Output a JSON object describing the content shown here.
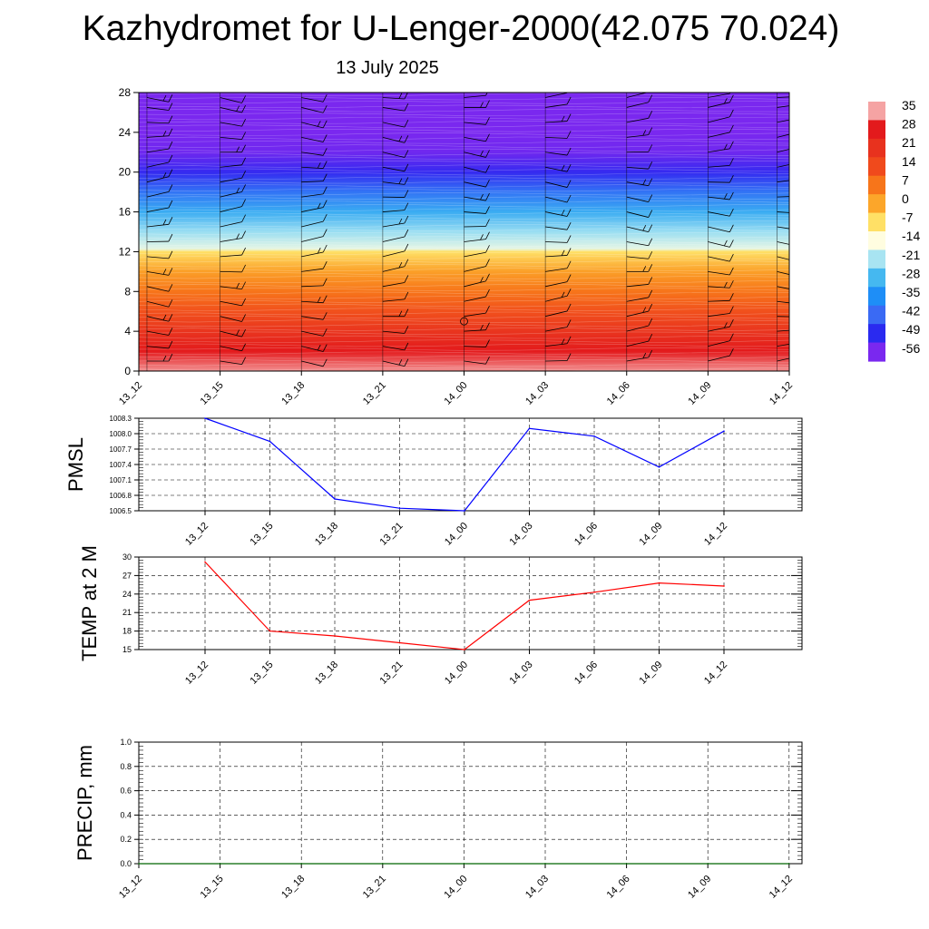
{
  "title": "Kazhydromet for U-Lenger-2000(42.075 70.024)",
  "subtitle": "13 July 2025",
  "chart_data": [
    {
      "type": "heatmap",
      "x_ticks": [
        "13_12",
        "13_15",
        "13_18",
        "13_21",
        "14_00",
        "14_03",
        "14_06",
        "14_09",
        "14_12"
      ],
      "y_ticks": [
        0,
        4,
        8,
        12,
        16,
        20,
        24,
        28
      ],
      "ylim": [
        0,
        28
      ],
      "colorbar": {
        "labels": [
          "35",
          "28",
          "21",
          "14",
          "7",
          "0",
          "-7",
          "-14",
          "-21",
          "-28",
          "-35",
          "-42",
          "-49",
          "-56"
        ],
        "colors": [
          "#f5a3a3",
          "#e31a1c",
          "#e8321e",
          "#f04a1c",
          "#f7751a",
          "#fca62a",
          "#ffe066",
          "#fffde0",
          "#a8e4f2",
          "#45b8f0",
          "#1e8ef7",
          "#3a6af4",
          "#2a2af0",
          "#7a28ef"
        ]
      },
      "temperature_profile": [
        {
          "y": 0,
          "value": 34
        },
        {
          "y": 2,
          "value": 28
        },
        {
          "y": 4,
          "value": 20
        },
        {
          "y": 6,
          "value": 13
        },
        {
          "y": 8,
          "value": 7
        },
        {
          "y": 10,
          "value": 1
        },
        {
          "y": 12,
          "value": -7
        },
        {
          "y": 12.3,
          "value": -16
        },
        {
          "y": 14,
          "value": -22
        },
        {
          "y": 16,
          "value": -30
        },
        {
          "y": 18,
          "value": -40
        },
        {
          "y": 20,
          "value": -50
        },
        {
          "y": 22,
          "value": -55
        },
        {
          "y": 24,
          "value": -58
        },
        {
          "y": 28,
          "value": -58
        }
      ],
      "wind_barbs": {
        "x_index": [
          0.1,
          1,
          2,
          3,
          4,
          5,
          6,
          7,
          7.85
        ],
        "levels": [
          1,
          2.5,
          4,
          5.5,
          7,
          8.5,
          10,
          11.5,
          13,
          14.5,
          16,
          17.5,
          19,
          20.5,
          22,
          23.5,
          25,
          26.5,
          27.5
        ]
      }
    },
    {
      "type": "line",
      "ylabel": "PMSL",
      "ylim": [
        1006.5,
        1008.3
      ],
      "y_ticks": [
        "1008.3",
        "1008.0",
        "1007.7",
        "1007.4",
        "1007.1",
        "1006.8",
        "1006.5"
      ],
      "x_ticks": [
        "13_12",
        "13_15",
        "13_18",
        "13_21",
        "14_00",
        "14_03",
        "14_06",
        "14_09",
        "14_12"
      ],
      "series": [
        {
          "values": [
            1008.3,
            1007.85,
            1006.73,
            1006.55,
            1006.5,
            1008.1,
            1007.95,
            1007.35,
            1008.05
          ],
          "color": "#0000ff"
        }
      ]
    },
    {
      "type": "line",
      "ylabel": "TEMP at 2 M",
      "ylim": [
        15,
        30
      ],
      "y_ticks": [
        "30",
        "27",
        "24",
        "21",
        "18",
        "15"
      ],
      "x_ticks": [
        "13_12",
        "13_15",
        "13_18",
        "13_21",
        "14_00",
        "14_03",
        "14_06",
        "14_09",
        "14_12"
      ],
      "series": [
        {
          "values": [
            29.2,
            18.0,
            17.2,
            16.1,
            15.0,
            23.0,
            24.3,
            25.8,
            25.3
          ],
          "color": "#ff0000"
        }
      ]
    },
    {
      "type": "line",
      "ylabel": "PRECIP, mm",
      "ylim": [
        0,
        1
      ],
      "y_ticks": [
        "1.0",
        "0.8",
        "0.6",
        "0.4",
        "0.2",
        "0.0"
      ],
      "x_ticks": [
        "13_12",
        "13_15",
        "13_18",
        "13_21",
        "14_00",
        "14_03",
        "14_06",
        "14_09",
        "14_12"
      ],
      "series": [
        {
          "values": [
            0,
            0,
            0,
            0,
            0,
            0,
            0,
            0,
            0
          ],
          "color": "#006400"
        }
      ]
    }
  ]
}
